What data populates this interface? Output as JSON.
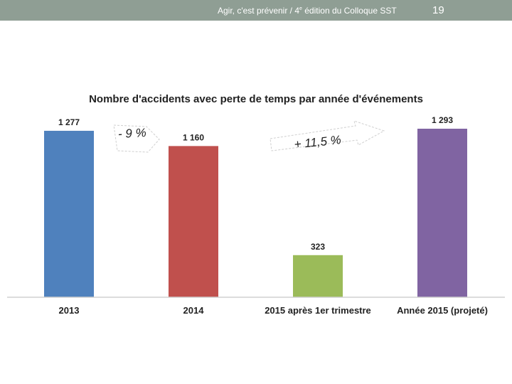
{
  "header": {
    "text_before_sup": "Agir, c'est prévenir / 4",
    "sup": "e",
    "text_after_sup": " édition du Colloque SST",
    "page_number": "19"
  },
  "colors": {
    "header_bg": "#8f9e94",
    "bar_2013": "#4f81bd",
    "bar_2014": "#c0504d",
    "bar_2015q1": "#9bbb59",
    "bar_2015proj": "#8064a2"
  },
  "chart_data": {
    "type": "bar",
    "title": "Nombre d'accidents avec perte de temps par année d'événements",
    "categories": [
      "2013",
      "2014",
      "2015 après 1er trimestre",
      "Année 2015 (projeté)"
    ],
    "values": [
      1277,
      1160,
      323,
      1293
    ],
    "value_labels": [
      "1 277",
      "1 160",
      "323",
      "1 293"
    ],
    "bar_colors": [
      "#4f81bd",
      "#c0504d",
      "#9bbb59",
      "#8064a2"
    ],
    "ylim": [
      0,
      1400
    ],
    "grid": false,
    "annotations": [
      "- 9 %",
      "+ 11,5 %"
    ]
  }
}
